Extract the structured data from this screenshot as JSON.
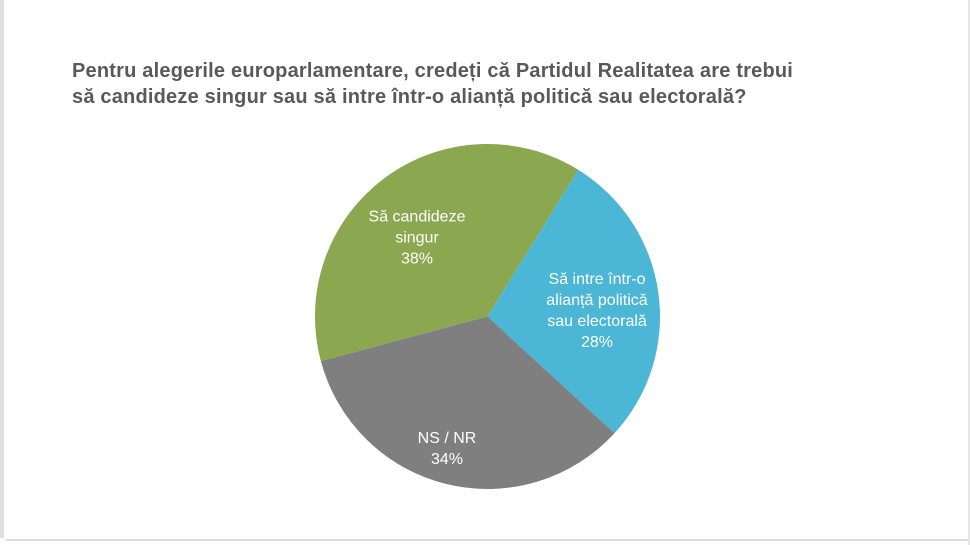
{
  "page": {
    "background": "#ffffff",
    "edge_color": "#e0e0e0"
  },
  "title": {
    "lines": [
      "Pentru alegerile europarlamentare, credeți că Partidul Realitatea are trebui",
      "să candideze singur sau să intre într-o alianță politică sau electorală?"
    ],
    "color": "#595959"
  },
  "chart_data": {
    "type": "pie",
    "title": "Pentru alegerile europarlamentare, credeți că Partidul Realitatea are trebui să candideze singur sau să intre într-o alianță politică sau electorală?",
    "legend_position": "none",
    "data_labels": "inside slices, white text, category name + percent",
    "start_angle_clockwise_from_12": 255,
    "slices": [
      {
        "id": "candideze-singur",
        "label": "Să candideze singur",
        "value": 38,
        "pct_label": "38%",
        "color": "#8BA850",
        "display_lines": [
          "Să candideze",
          "singur",
          "38%"
        ]
      },
      {
        "id": "alianta-politica",
        "label": "Să intre într-o alianță politică sau electorală",
        "value": 28,
        "pct_label": "28%",
        "color": "#4BB6D5",
        "display_lines": [
          "Să intre într-o",
          "alianță politică",
          "sau electorală",
          "28%"
        ]
      },
      {
        "id": "ns-nr",
        "label": "NS / NR",
        "value": 34,
        "pct_label": "34%",
        "color": "#7F7F7F",
        "display_lines": [
          "NS / NR",
          "34%"
        ]
      }
    ]
  }
}
